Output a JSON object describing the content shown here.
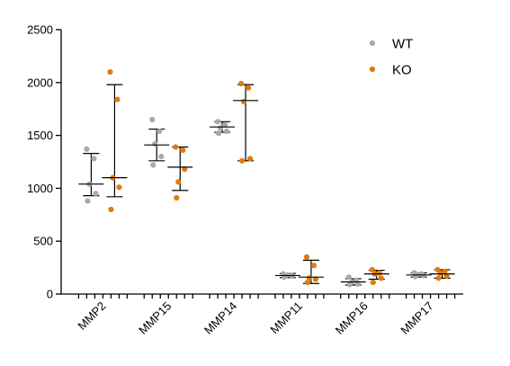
{
  "chart_data": {
    "type": "scatter",
    "title": "",
    "xlabel": "",
    "ylabel": "",
    "ylim": [
      0,
      2500
    ],
    "yticks": [
      0,
      500,
      1000,
      1500,
      2000,
      2500
    ],
    "categories": [
      "MMP2",
      "MMP15",
      "MMP14",
      "MMP11",
      "MMP16",
      "MMP17"
    ],
    "legend_position": "top-right",
    "grid": false,
    "series": [
      {
        "name": "WT",
        "color": "#a9a9a9",
        "marker": "circle",
        "points": [
          [
            1370,
            1280,
            1040,
            950,
            880
          ],
          [
            1650,
            1540,
            1420,
            1300,
            1220
          ],
          [
            1630,
            1600,
            1570,
            1540,
            1520
          ],
          [
            190,
            180,
            175,
            170,
            160
          ],
          [
            160,
            130,
            110,
            95,
            90
          ],
          [
            200,
            190,
            180,
            175,
            165
          ]
        ],
        "center": [
          1040,
          1410,
          1580,
          175,
          115,
          180
        ],
        "error": [
          [
            930,
            1330
          ],
          [
            1260,
            1560
          ],
          [
            1530,
            1630
          ],
          [
            155,
            195
          ],
          [
            85,
            145
          ],
          [
            160,
            200
          ]
        ]
      },
      {
        "name": "KO",
        "color": "#e07b0f",
        "marker": "circle",
        "points": [
          [
            2100,
            1840,
            1100,
            1010,
            800
          ],
          [
            1390,
            1360,
            1060,
            1180,
            910
          ],
          [
            1990,
            1950,
            1820,
            1280,
            1260
          ],
          [
            350,
            270,
            150,
            140,
            110
          ],
          [
            230,
            200,
            190,
            150,
            110
          ],
          [
            230,
            215,
            200,
            170,
            150
          ]
        ],
        "center": [
          1100,
          1200,
          1830,
          160,
          190,
          190
        ],
        "error": [
          [
            920,
            1980
          ],
          [
            980,
            1390
          ],
          [
            1260,
            1980
          ],
          [
            100,
            320
          ],
          [
            140,
            225
          ],
          [
            150,
            230
          ]
        ]
      }
    ]
  }
}
